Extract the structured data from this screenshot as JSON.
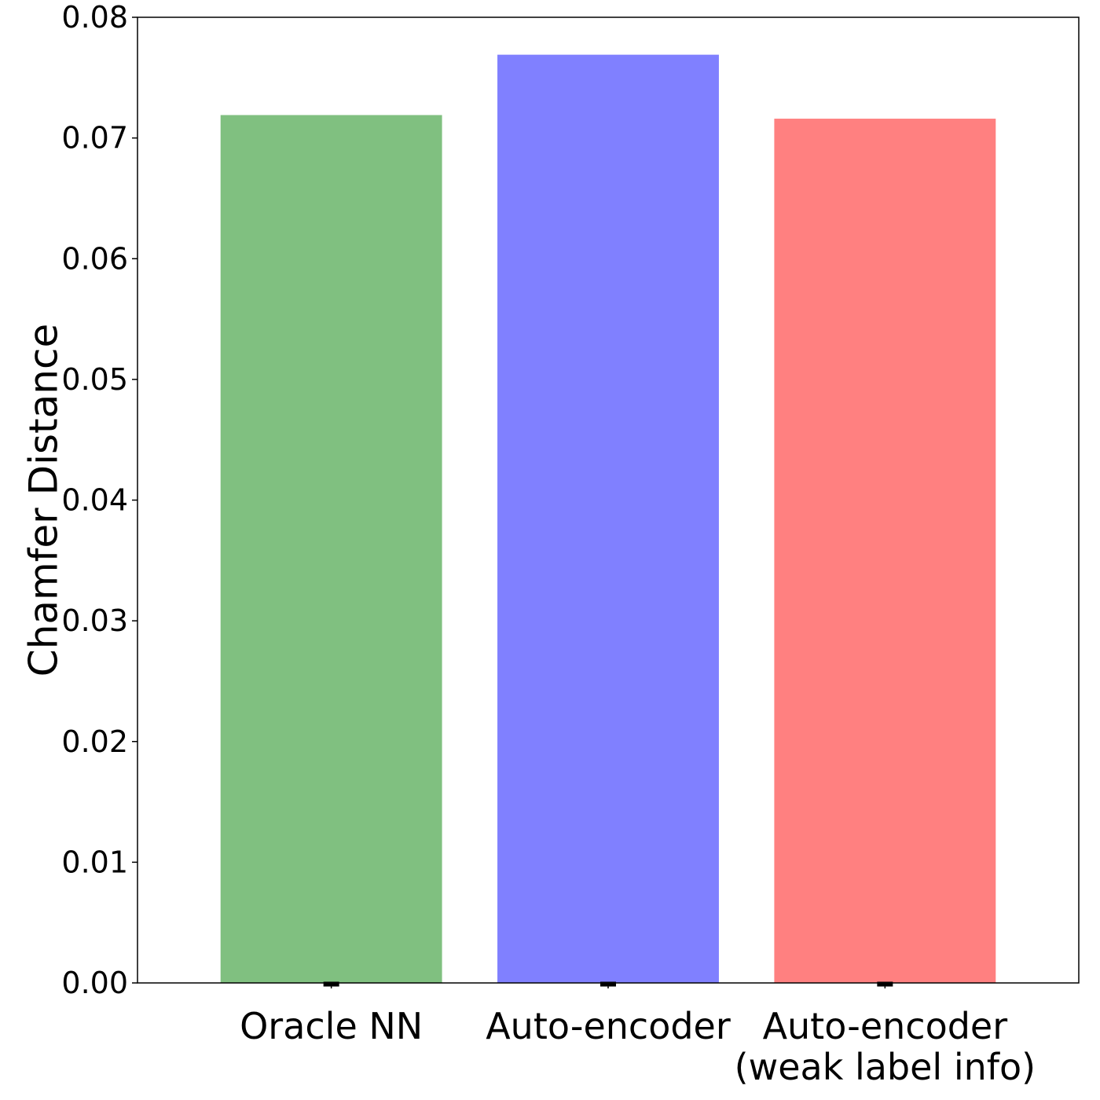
{
  "chart_data": {
    "type": "bar",
    "title": "",
    "xlabel": "",
    "ylabel": "Chamfer Distance",
    "ylim": [
      0,
      0.08
    ],
    "yticks": [
      0.0,
      0.01,
      0.02,
      0.03,
      0.04,
      0.05,
      0.06,
      0.07,
      0.08
    ],
    "ytick_labels": [
      "0.00",
      "0.01",
      "0.02",
      "0.03",
      "0.04",
      "0.05",
      "0.06",
      "0.07",
      "0.08"
    ],
    "categories": [
      [
        "Oracle NN"
      ],
      [
        "Auto-encoder"
      ],
      [
        "Auto-encoder",
        "(weak label info)"
      ]
    ],
    "values": [
      0.0719,
      0.0769,
      0.0716
    ],
    "error_values": [
      0.0002,
      0.0002,
      0.0002
    ],
    "colors": [
      "#80c080",
      "#8080ff",
      "#ff8080"
    ],
    "grid": false,
    "legend": "none"
  }
}
